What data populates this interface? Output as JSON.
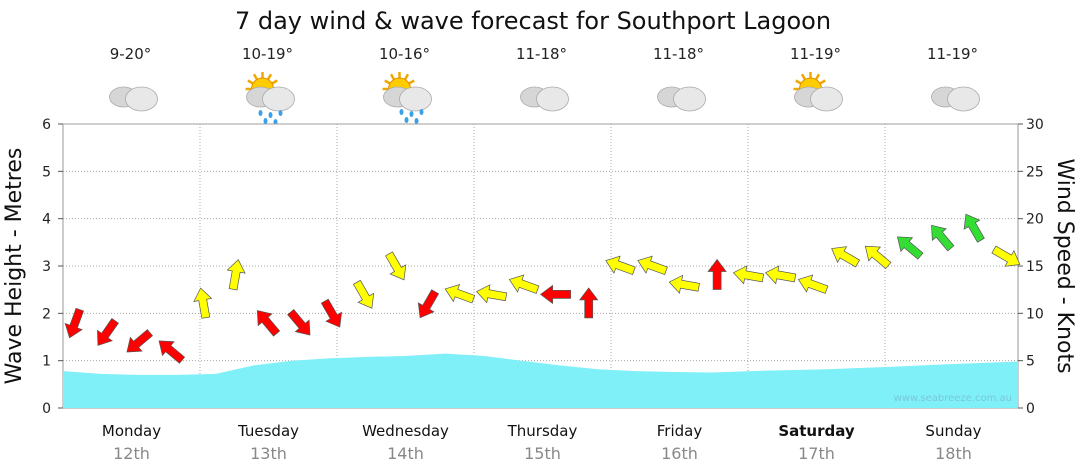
{
  "chart_data": {
    "type": "area",
    "title": "7 day wind & wave forecast for Southport Lagoon",
    "ylabel_left": "Wave Height - Metres",
    "ylabel_right": "Wind Speed - Knots",
    "ylim_left": [
      0,
      6
    ],
    "ylim_right": [
      0,
      30
    ],
    "yticks_left": [
      "0",
      "1",
      "2",
      "3",
      "4",
      "5",
      "6"
    ],
    "yticks_right": [
      "0",
      "5",
      "10",
      "15",
      "20",
      "25",
      "30"
    ],
    "grid": true,
    "days": [
      {
        "name": "Monday",
        "date": "12th",
        "temp": "9-20°",
        "weather": "cloudy-icon",
        "bold": false
      },
      {
        "name": "Tuesday",
        "date": "13th",
        "temp": "10-19°",
        "weather": "sun-rain-icon",
        "bold": false
      },
      {
        "name": "Wednesday",
        "date": "14th",
        "temp": "10-16°",
        "weather": "sun-shower-icon",
        "bold": false
      },
      {
        "name": "Thursday",
        "date": "15th",
        "temp": "11-18°",
        "weather": "cloudy-icon",
        "bold": false
      },
      {
        "name": "Friday",
        "date": "16th",
        "temp": "11-18°",
        "weather": "cloudy-icon",
        "bold": false
      },
      {
        "name": "Saturday",
        "date": "17th",
        "temp": "11-19°",
        "weather": "partly-cloudy-icon",
        "bold": true
      },
      {
        "name": "Sunday",
        "date": "18th",
        "temp": "11-19°",
        "weather": "cloudy-icon",
        "bold": false
      }
    ],
    "wave_height_m": [
      0.78,
      0.72,
      0.7,
      0.7,
      0.72,
      0.9,
      1.0,
      1.05,
      1.08,
      1.1,
      1.15,
      1.1,
      1.0,
      0.9,
      0.82,
      0.78,
      0.76,
      0.75,
      0.78,
      0.8,
      0.82,
      0.85,
      0.88,
      0.92,
      0.95,
      0.98
    ],
    "wind_knots": [
      9,
      8,
      7,
      6,
      11,
      14,
      9,
      9,
      10,
      12,
      15,
      11,
      12,
      12,
      13,
      12,
      11,
      15,
      15,
      13,
      14,
      14,
      14,
      13,
      16,
      16,
      17,
      18,
      19,
      16
    ],
    "wind_colors": [
      "#ff0000",
      "#ff0000",
      "#ff0000",
      "#ff0000",
      "#ffff00",
      "#ffff00",
      "#ff0000",
      "#ff0000",
      "#ff0000",
      "#ffff00",
      "#ffff00",
      "#ff0000",
      "#ffff00",
      "#ffff00",
      "#ffff00",
      "#ff0000",
      "#ff0000",
      "#ffff00",
      "#ffff00",
      "#ffff00",
      "#ff0000",
      "#ffff00",
      "#ffff00",
      "#ffff00",
      "#ffff00",
      "#ffff00",
      "#33dd33",
      "#33dd33",
      "#33dd33",
      "#ffff00"
    ],
    "wind_dir_deg": [
      110,
      125,
      140,
      220,
      260,
      280,
      230,
      50,
      60,
      60,
      60,
      120,
      200,
      190,
      200,
      180,
      270,
      200,
      200,
      190,
      270,
      190,
      190,
      200,
      210,
      220,
      220,
      230,
      240,
      30
    ],
    "credit": "www.seabreeze.com.au",
    "colors": {
      "wave_fill": "#7ff0f8",
      "grid": "#aaaaaa"
    }
  }
}
